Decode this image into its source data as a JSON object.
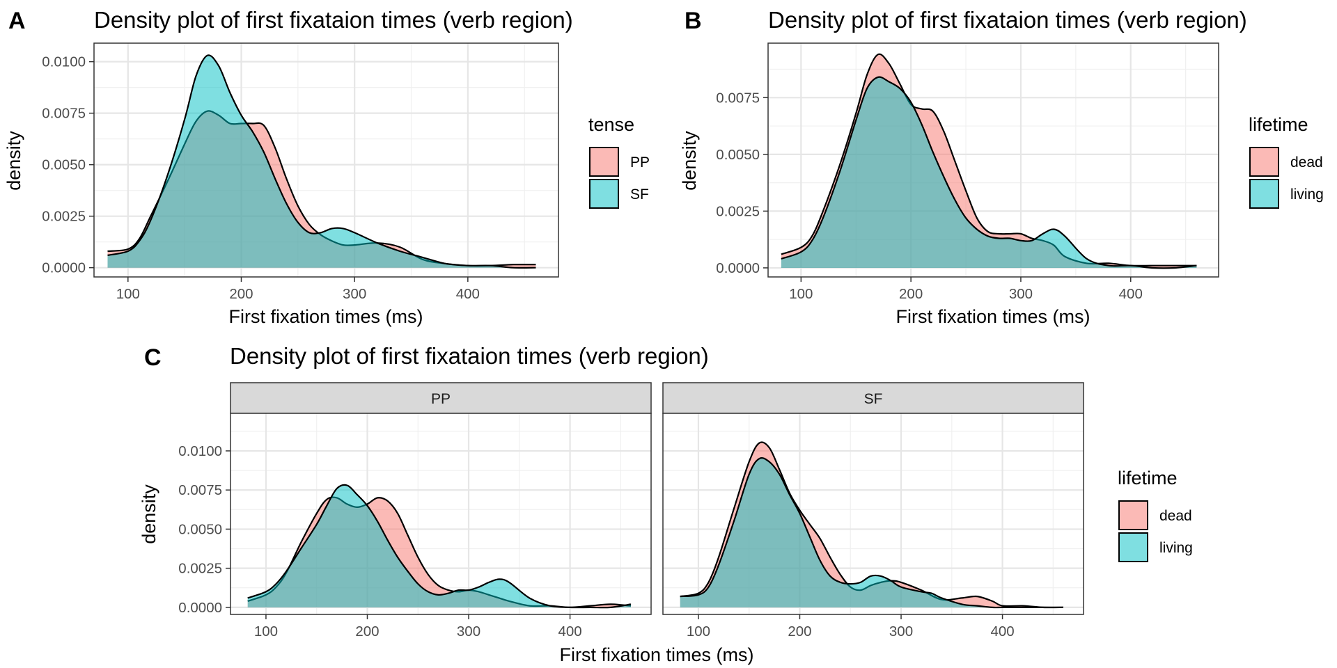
{
  "chart_data": [
    {
      "panel": "A",
      "type": "area",
      "title": "Density plot of first fixataion times (verb region)",
      "xlabel": "First fixation times (ms)",
      "ylabel": "density",
      "xlim": [
        70,
        480
      ],
      "ylim": [
        -0.00045,
        0.0109
      ],
      "x_ticks": [
        100,
        200,
        300,
        400
      ],
      "x_tick_labels": [
        "100",
        "200",
        "300",
        "400"
      ],
      "y_ticks": [
        0,
        0.0025,
        0.005,
        0.0075,
        0.01
      ],
      "y_tick_labels": [
        "0.0000",
        "0.0025",
        "0.0050",
        "0.0075",
        "0.0100"
      ],
      "grid": true,
      "legend": {
        "title": "tense",
        "position": "right"
      },
      "series": [
        {
          "name": "PP",
          "color": "#F8766D",
          "x": [
            82,
            100,
            110,
            120,
            135,
            150,
            160,
            170,
            180,
            190,
            200,
            210,
            220,
            230,
            240,
            250,
            260,
            270,
            280,
            290,
            300,
            320,
            340,
            360,
            380,
            400,
            420,
            440,
            460
          ],
          "y": [
            0.0008,
            0.0009,
            0.0014,
            0.0025,
            0.0042,
            0.006,
            0.0071,
            0.0076,
            0.0074,
            0.007,
            0.007,
            0.007,
            0.0069,
            0.0058,
            0.0043,
            0.003,
            0.0021,
            0.0016,
            0.0013,
            0.0011,
            0.0011,
            0.0012,
            0.001,
            0.0004,
            0.0002,
            0.0001,
            0.0001,
            0.00015,
            0.00015
          ]
        },
        {
          "name": "SF",
          "color": "#00BFC4",
          "x": [
            82,
            100,
            110,
            120,
            135,
            150,
            160,
            170,
            180,
            190,
            200,
            210,
            220,
            230,
            240,
            250,
            260,
            270,
            280,
            290,
            300,
            320,
            340,
            360,
            380,
            400,
            420,
            440,
            460
          ],
          "y": [
            0.0006,
            0.0008,
            0.0013,
            0.0023,
            0.0045,
            0.0072,
            0.0093,
            0.0103,
            0.0098,
            0.0085,
            0.0074,
            0.0066,
            0.0056,
            0.0043,
            0.0031,
            0.0022,
            0.0017,
            0.0017,
            0.0019,
            0.0019,
            0.0017,
            0.0012,
            0.0008,
            0.0005,
            0.0002,
            0.0001,
            0.0001,
            0.0,
            0.0
          ]
        }
      ]
    },
    {
      "panel": "B",
      "type": "area",
      "title": "Density plot of first fixataion times (verb region)",
      "xlabel": "First fixation times (ms)",
      "ylabel": "density",
      "xlim": [
        70,
        480
      ],
      "ylim": [
        -0.0004,
        0.0099
      ],
      "x_ticks": [
        100,
        200,
        300,
        400
      ],
      "x_tick_labels": [
        "100",
        "200",
        "300",
        "400"
      ],
      "y_ticks": [
        0,
        0.0025,
        0.005,
        0.0075
      ],
      "y_tick_labels": [
        "0.0000",
        "0.0025",
        "0.0050",
        "0.0075"
      ],
      "grid": true,
      "legend": {
        "title": "lifetime",
        "position": "right"
      },
      "series": [
        {
          "name": "dead",
          "color": "#F8766D",
          "x": [
            82,
            100,
            110,
            120,
            135,
            150,
            160,
            170,
            180,
            190,
            200,
            210,
            220,
            230,
            240,
            250,
            260,
            270,
            280,
            290,
            300,
            310,
            320,
            330,
            340,
            360,
            380,
            400,
            420,
            440,
            460
          ],
          "y": [
            0.0006,
            0.0009,
            0.0014,
            0.0025,
            0.0045,
            0.0068,
            0.0085,
            0.0094,
            0.009,
            0.0081,
            0.0072,
            0.007,
            0.0069,
            0.006,
            0.0047,
            0.0034,
            0.0022,
            0.0016,
            0.0015,
            0.0015,
            0.0015,
            0.0013,
            0.0012,
            0.001,
            0.0005,
            0.0002,
            0.0002,
            0.0001,
            0.0001,
            0.0001,
            0.0001
          ]
        },
        {
          "name": "living",
          "color": "#00BFC4",
          "x": [
            82,
            100,
            110,
            120,
            135,
            150,
            160,
            170,
            180,
            190,
            200,
            210,
            220,
            230,
            240,
            250,
            260,
            270,
            280,
            290,
            300,
            310,
            320,
            330,
            340,
            360,
            380,
            400,
            420,
            440,
            460
          ],
          "y": [
            0.0004,
            0.0007,
            0.0012,
            0.0022,
            0.0042,
            0.0065,
            0.0079,
            0.0084,
            0.0082,
            0.0079,
            0.0073,
            0.0063,
            0.0051,
            0.004,
            0.003,
            0.0022,
            0.0017,
            0.0014,
            0.0013,
            0.0013,
            0.0012,
            0.0012,
            0.0015,
            0.0017,
            0.0014,
            0.0004,
            0.0001,
            0.0001,
            0.0,
            0.0,
            0.0001
          ]
        }
      ]
    },
    {
      "panel": "C",
      "type": "area",
      "title": "Density plot of first fixataion times (verb region)",
      "xlabel": "First fixation times (ms)",
      "ylabel": "density",
      "xlim": [
        65,
        480
      ],
      "ylim": [
        -0.00045,
        0.0124
      ],
      "x_ticks": [
        100,
        200,
        300,
        400
      ],
      "x_tick_labels": [
        "100",
        "200",
        "300",
        "400"
      ],
      "y_ticks": [
        0,
        0.0025,
        0.005,
        0.0075,
        0.01
      ],
      "y_tick_labels": [
        "0.0000",
        "0.0025",
        "0.0050",
        "0.0075",
        "0.0100"
      ],
      "grid": true,
      "legend": {
        "title": "lifetime",
        "position": "right"
      },
      "facets": [
        {
          "label": "PP",
          "series": [
            {
              "name": "dead",
              "color": "#F8766D",
              "x": [
                82,
                100,
                110,
                120,
                135,
                150,
                160,
                170,
                180,
                190,
                200,
                210,
                220,
                230,
                240,
                250,
                260,
                270,
                280,
                290,
                300,
                310,
                320,
                330,
                340,
                360,
                380,
                400,
                420,
                440,
                460
              ],
              "y": [
                0.0004,
                0.0008,
                0.0013,
                0.0022,
                0.0042,
                0.006,
                0.0069,
                0.007,
                0.0066,
                0.0064,
                0.0066,
                0.007,
                0.0068,
                0.006,
                0.0046,
                0.0032,
                0.0021,
                0.0014,
                0.0011,
                0.001,
                0.0011,
                0.001,
                0.0008,
                0.0006,
                0.0004,
                0.0001,
                0.0001,
                0.0,
                0.0001,
                0.0002,
                0.0001
              ]
            },
            {
              "name": "living",
              "color": "#00BFC4",
              "x": [
                82,
                100,
                110,
                120,
                135,
                150,
                160,
                170,
                180,
                190,
                200,
                210,
                220,
                230,
                240,
                250,
                260,
                270,
                280,
                290,
                300,
                310,
                320,
                330,
                340,
                360,
                380,
                400,
                420,
                440,
                460
              ],
              "y": [
                0.0006,
                0.001,
                0.0015,
                0.0023,
                0.0038,
                0.0053,
                0.0065,
                0.0076,
                0.0078,
                0.0072,
                0.0065,
                0.0055,
                0.0043,
                0.0032,
                0.0023,
                0.0015,
                0.001,
                0.0008,
                0.0009,
                0.0011,
                0.0011,
                0.0013,
                0.0016,
                0.0018,
                0.0016,
                0.0006,
                0.0001,
                0.0,
                0.0,
                0.0,
                0.0002
              ]
            }
          ]
        },
        {
          "label": "SF",
          "series": [
            {
              "name": "dead",
              "color": "#F8766D",
              "x": [
                82,
                100,
                110,
                120,
                135,
                150,
                160,
                170,
                180,
                190,
                200,
                210,
                220,
                230,
                240,
                250,
                260,
                270,
                280,
                290,
                300,
                320,
                340,
                360,
                375,
                390,
                400,
                420,
                440,
                460
              ],
              "y": [
                0.0007,
                0.0009,
                0.0016,
                0.0032,
                0.0063,
                0.0093,
                0.0105,
                0.0102,
                0.0088,
                0.0073,
                0.0062,
                0.0053,
                0.0044,
                0.0032,
                0.0021,
                0.0013,
                0.0011,
                0.0014,
                0.0016,
                0.0017,
                0.0016,
                0.0011,
                0.0005,
                0.0006,
                0.0007,
                0.0004,
                0.0001,
                0.0001,
                0.0,
                0.0
              ]
            },
            {
              "name": "living",
              "color": "#00BFC4",
              "x": [
                82,
                100,
                110,
                120,
                135,
                150,
                160,
                170,
                180,
                190,
                200,
                210,
                220,
                230,
                240,
                250,
                260,
                270,
                280,
                290,
                300,
                320,
                330,
                340,
                360,
                375,
                390,
                400,
                420,
                440,
                460
              ],
              "y": [
                0.0007,
                0.0008,
                0.0013,
                0.0027,
                0.0055,
                0.0085,
                0.0095,
                0.0093,
                0.0085,
                0.0072,
                0.006,
                0.0045,
                0.003,
                0.002,
                0.0016,
                0.0015,
                0.0016,
                0.002,
                0.002,
                0.0017,
                0.0013,
                0.001,
                0.0009,
                0.0006,
                0.0002,
                0.0001,
                0.0,
                0.0,
                0.0,
                0.0,
                0.0
              ]
            }
          ]
        }
      ]
    }
  ],
  "panels": {
    "a": {
      "letter": "A",
      "legend_items": [
        "PP",
        "SF"
      ]
    },
    "b": {
      "letter": "B",
      "legend_items": [
        "dead",
        "living"
      ]
    },
    "c": {
      "letter": "C",
      "legend_items": [
        "dead",
        "living"
      ]
    }
  }
}
